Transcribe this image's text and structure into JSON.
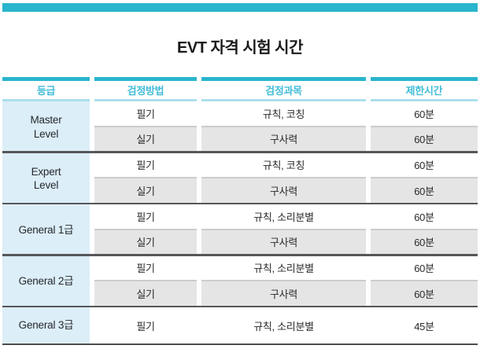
{
  "page": {
    "title": "EVT 자격 시험 시간"
  },
  "colors": {
    "accent_teal": "#29b5ce",
    "header_text_teal": "#41bcd7",
    "header_underline": "#abdfec",
    "grade_column_bg": "#dceef8",
    "alt_row_bg": "#e5e5e5",
    "group_separator": "#57575a"
  },
  "table": {
    "headers": [
      "등급",
      "검정방법",
      "검정과목",
      "제한시간"
    ],
    "groups": [
      {
        "level": "Master\nLevel",
        "rows": [
          {
            "method": "필기",
            "subject": "규칙, 코칭",
            "time": "60분"
          },
          {
            "method": "실기",
            "subject": "구사력",
            "time": "60분"
          }
        ]
      },
      {
        "level": "Expert\nLevel",
        "rows": [
          {
            "method": "필기",
            "subject": "규칙, 코칭",
            "time": "60분"
          },
          {
            "method": "실기",
            "subject": "구사력",
            "time": "60분"
          }
        ]
      },
      {
        "level": "General 1급",
        "rows": [
          {
            "method": "필기",
            "subject": "규칙, 소리분별",
            "time": "60분"
          },
          {
            "method": "실기",
            "subject": "구사력",
            "time": "60분"
          }
        ]
      },
      {
        "level": "General 2급",
        "rows": [
          {
            "method": "필기",
            "subject": "규칙, 소리분별",
            "time": "60분"
          },
          {
            "method": "실기",
            "subject": "구사력",
            "time": "60분"
          }
        ]
      },
      {
        "level": "General 3급",
        "rows": [
          {
            "method": "필기",
            "subject": "규칙, 소리분별",
            "time": "45분"
          }
        ]
      }
    ]
  }
}
